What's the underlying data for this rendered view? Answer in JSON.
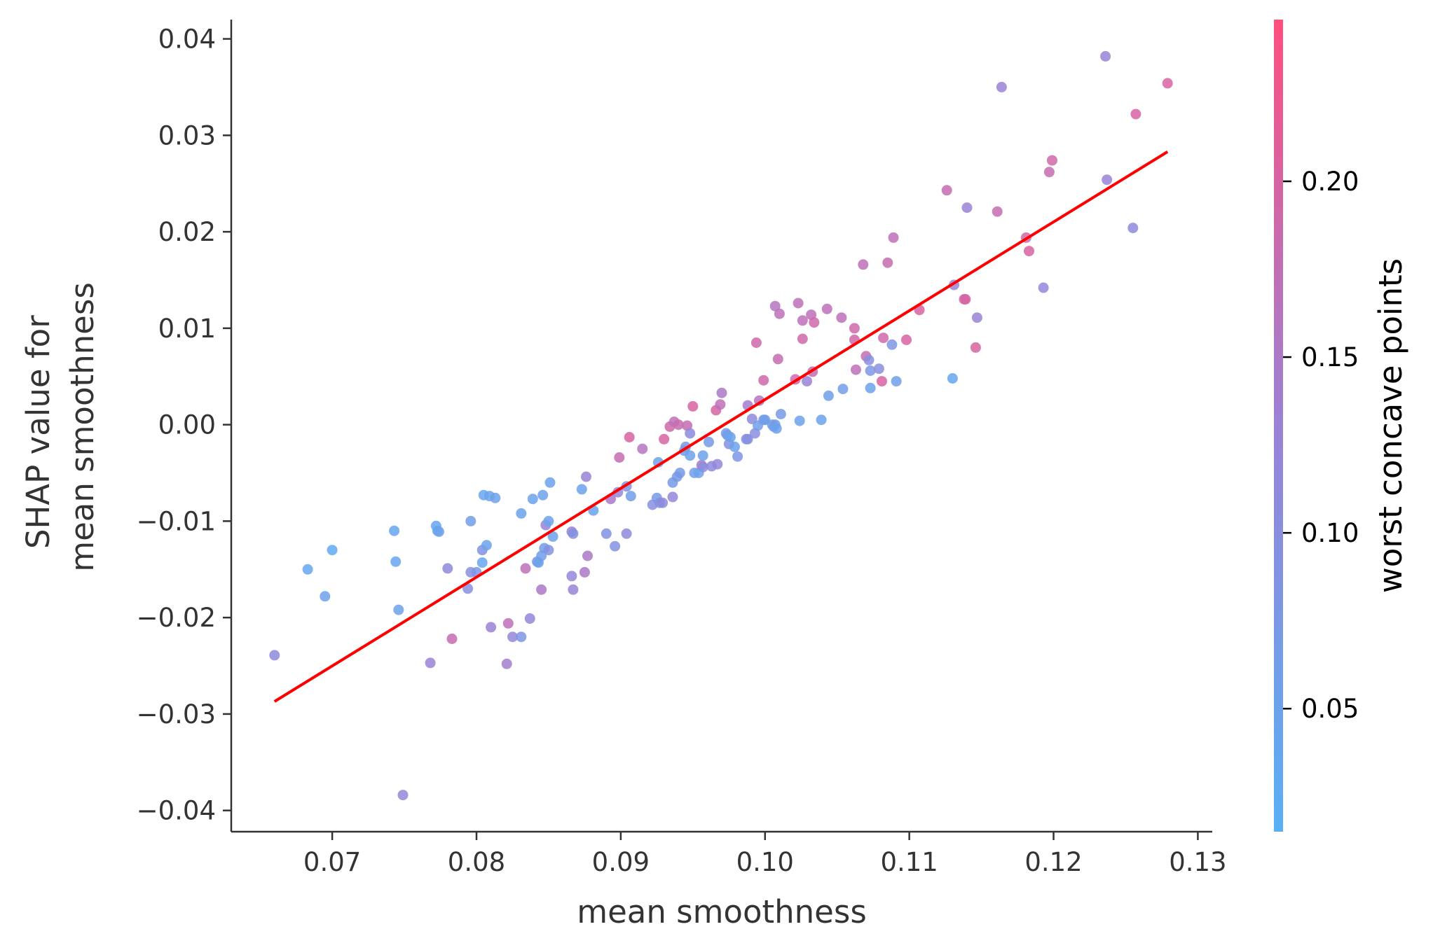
{
  "chart_data": {
    "type": "scatter",
    "xlabel": "mean smoothness",
    "ylabel_lines": [
      "SHAP value for",
      "mean smoothness"
    ],
    "xlim": [
      0.063,
      0.131
    ],
    "ylim": [
      -0.0422,
      0.042
    ],
    "xticks": [
      0.07,
      0.08,
      0.09,
      0.1,
      0.11,
      0.12,
      0.13
    ],
    "xtick_labels": [
      "0.07",
      "0.08",
      "0.09",
      "0.10",
      "0.11",
      "0.12",
      "0.13"
    ],
    "yticks": [
      -0.04,
      -0.03,
      -0.02,
      -0.01,
      0.0,
      0.01,
      0.02,
      0.03,
      0.04
    ],
    "ytick_labels": [
      "−0.04",
      "−0.03",
      "−0.02",
      "−0.01",
      "0.00",
      "0.01",
      "0.02",
      "0.03",
      "0.04"
    ],
    "colorbar": {
      "label": "worst concave points",
      "range": [
        0.015,
        0.246
      ],
      "ticks": [
        0.05,
        0.1,
        0.15,
        0.2
      ],
      "tick_labels": [
        "0.05",
        "0.10",
        "0.15",
        "0.20"
      ],
      "color_low": "#58b0f5",
      "color_mid": "#9a82d6",
      "color_high": "#ff4f7e"
    },
    "trend_line": {
      "color": "#ff0000",
      "x": [
        0.066,
        0.1279
      ],
      "y": [
        -0.0287,
        0.0283
      ]
    },
    "points": [
      [
        0.066,
        -0.0239,
        0.11
      ],
      [
        0.0683,
        -0.015,
        0.04
      ],
      [
        0.0695,
        -0.0178,
        0.05
      ],
      [
        0.07,
        -0.013,
        0.03
      ],
      [
        0.0743,
        -0.011,
        0.04
      ],
      [
        0.0744,
        -0.0142,
        0.04
      ],
      [
        0.0746,
        -0.0192,
        0.05
      ],
      [
        0.0749,
        -0.0384,
        0.12
      ],
      [
        0.0768,
        -0.0247,
        0.13
      ],
      [
        0.0772,
        -0.0105,
        0.04
      ],
      [
        0.0773,
        -0.011,
        0.04
      ],
      [
        0.0774,
        -0.0111,
        0.05
      ],
      [
        0.078,
        -0.0149,
        0.11
      ],
      [
        0.0783,
        -0.0222,
        0.18
      ],
      [
        0.0794,
        -0.017,
        0.1
      ],
      [
        0.0796,
        -0.0153,
        0.1
      ],
      [
        0.0796,
        -0.01,
        0.06
      ],
      [
        0.08,
        -0.0153,
        0.08
      ],
      [
        0.0804,
        -0.013,
        0.09
      ],
      [
        0.0804,
        -0.0143,
        0.04
      ],
      [
        0.0805,
        -0.0073,
        0.04
      ],
      [
        0.0807,
        -0.0125,
        0.05
      ],
      [
        0.0809,
        -0.0074,
        0.05
      ],
      [
        0.081,
        -0.021,
        0.13
      ],
      [
        0.0813,
        -0.0076,
        0.05
      ],
      [
        0.0821,
        -0.0248,
        0.14
      ],
      [
        0.0822,
        -0.0206,
        0.17
      ],
      [
        0.0825,
        -0.022,
        0.12
      ],
      [
        0.0831,
        -0.022,
        0.08
      ],
      [
        0.0831,
        -0.0092,
        0.05
      ],
      [
        0.0834,
        -0.0149,
        0.17
      ],
      [
        0.0837,
        -0.0201,
        0.12
      ],
      [
        0.0839,
        -0.0077,
        0.05
      ],
      [
        0.0842,
        -0.0142,
        0.08
      ],
      [
        0.0843,
        -0.0143,
        0.05
      ],
      [
        0.0845,
        -0.0136,
        0.06
      ],
      [
        0.0845,
        -0.0171,
        0.15
      ],
      [
        0.0846,
        -0.0073,
        0.05
      ],
      [
        0.0847,
        -0.0128,
        0.06
      ],
      [
        0.0848,
        -0.0104,
        0.13
      ],
      [
        0.085,
        -0.013,
        0.09
      ],
      [
        0.085,
        -0.01,
        0.05
      ],
      [
        0.0851,
        -0.006,
        0.05
      ],
      [
        0.0853,
        -0.0116,
        0.05
      ],
      [
        0.0866,
        -0.0157,
        0.12
      ],
      [
        0.0866,
        -0.0111,
        0.13
      ],
      [
        0.0867,
        -0.0171,
        0.13
      ],
      [
        0.0867,
        -0.0113,
        0.09
      ],
      [
        0.0873,
        -0.0067,
        0.05
      ],
      [
        0.0875,
        -0.0153,
        0.15
      ],
      [
        0.0876,
        -0.0054,
        0.13
      ],
      [
        0.0877,
        -0.0136,
        0.15
      ],
      [
        0.0881,
        -0.0089,
        0.05
      ],
      [
        0.089,
        -0.0113,
        0.09
      ],
      [
        0.0893,
        -0.0077,
        0.15
      ],
      [
        0.0896,
        -0.0126,
        0.09
      ],
      [
        0.0898,
        -0.007,
        0.12
      ],
      [
        0.0899,
        -0.0034,
        0.18
      ],
      [
        0.0904,
        -0.0064,
        0.09
      ],
      [
        0.0904,
        -0.0113,
        0.11
      ],
      [
        0.0906,
        -0.0013,
        0.2
      ],
      [
        0.0907,
        -0.0074,
        0.06
      ],
      [
        0.0915,
        -0.0025,
        0.16
      ],
      [
        0.0922,
        -0.0083,
        0.1
      ],
      [
        0.0925,
        -0.0076,
        0.07
      ],
      [
        0.0926,
        -0.0039,
        0.05
      ],
      [
        0.0927,
        -0.0081,
        0.09
      ],
      [
        0.0929,
        -0.0081,
        0.11
      ],
      [
        0.093,
        -0.0015,
        0.2
      ],
      [
        0.0934,
        -0.0002,
        0.19
      ],
      [
        0.0936,
        -0.0075,
        0.12
      ],
      [
        0.0936,
        -0.006,
        0.07
      ],
      [
        0.0937,
        0.0003,
        0.17
      ],
      [
        0.0939,
        -0.0054,
        0.07
      ],
      [
        0.094,
        0.0,
        0.18
      ],
      [
        0.0941,
        -0.005,
        0.07
      ],
      [
        0.0944,
        -0.0027,
        0.06
      ],
      [
        0.0945,
        -0.0023,
        0.08
      ],
      [
        0.0946,
        -0.0001,
        0.18
      ],
      [
        0.0948,
        -0.0032,
        0.05
      ],
      [
        0.0948,
        -0.0009,
        0.11
      ],
      [
        0.095,
        0.0019,
        0.2
      ],
      [
        0.0951,
        -0.005,
        0.06
      ],
      [
        0.0954,
        -0.005,
        0.05
      ],
      [
        0.0956,
        -0.0042,
        0.15
      ],
      [
        0.0957,
        -0.0044,
        0.1
      ],
      [
        0.0957,
        -0.0032,
        0.05
      ],
      [
        0.0961,
        -0.0018,
        0.07
      ],
      [
        0.0963,
        -0.0043,
        0.11
      ],
      [
        0.0966,
        0.0015,
        0.2
      ],
      [
        0.0967,
        -0.0041,
        0.12
      ],
      [
        0.0969,
        0.0021,
        0.17
      ],
      [
        0.097,
        0.0033,
        0.15
      ],
      [
        0.0973,
        -0.0009,
        0.07
      ],
      [
        0.0974,
        -0.0011,
        0.06
      ],
      [
        0.0975,
        -0.002,
        0.09
      ],
      [
        0.0976,
        -0.0013,
        0.05
      ],
      [
        0.0979,
        -0.0023,
        0.05
      ],
      [
        0.0981,
        -0.0033,
        0.08
      ],
      [
        0.0987,
        -0.0015,
        0.08
      ],
      [
        0.0988,
        0.002,
        0.14
      ],
      [
        0.0988,
        -0.0015,
        0.1
      ],
      [
        0.0991,
        0.0006,
        0.11
      ],
      [
        0.0993,
        -0.0009,
        0.1
      ],
      [
        0.0994,
        0.0085,
        0.19
      ],
      [
        0.0995,
        -0.0001,
        0.06
      ],
      [
        0.0996,
        0.0025,
        0.16
      ],
      [
        0.0999,
        0.0046,
        0.19
      ],
      [
        0.0999,
        0.0005,
        0.07
      ],
      [
        0.1,
        0.0005,
        0.06
      ],
      [
        0.1005,
        0.0,
        0.06
      ],
      [
        0.1006,
        -0.0002,
        0.05
      ],
      [
        0.1007,
        0.0123,
        0.16
      ],
      [
        0.1007,
        0.0,
        0.07
      ],
      [
        0.1008,
        -0.0004,
        0.05
      ],
      [
        0.1009,
        0.0068,
        0.18
      ],
      [
        0.101,
        0.0115,
        0.17
      ],
      [
        0.1011,
        0.0011,
        0.07
      ],
      [
        0.1021,
        0.0047,
        0.19
      ],
      [
        0.1023,
        0.0126,
        0.17
      ],
      [
        0.1024,
        0.0004,
        0.05
      ],
      [
        0.1026,
        0.0089,
        0.19
      ],
      [
        0.1026,
        0.0108,
        0.17
      ],
      [
        0.1029,
        0.0045,
        0.13
      ],
      [
        0.1032,
        0.0114,
        0.17
      ],
      [
        0.1033,
        0.0055,
        0.18
      ],
      [
        0.1034,
        0.0106,
        0.19
      ],
      [
        0.1039,
        0.0005,
        0.05
      ],
      [
        0.1043,
        0.012,
        0.17
      ],
      [
        0.1044,
        0.003,
        0.06
      ],
      [
        0.1053,
        0.0111,
        0.17
      ],
      [
        0.1054,
        0.0037,
        0.06
      ],
      [
        0.1062,
        0.01,
        0.19
      ],
      [
        0.1062,
        0.0088,
        0.19
      ],
      [
        0.1063,
        0.0057,
        0.17
      ],
      [
        0.1068,
        0.0166,
        0.17
      ],
      [
        0.107,
        0.0071,
        0.18
      ],
      [
        0.1072,
        0.0067,
        0.1
      ],
      [
        0.1073,
        0.0038,
        0.05
      ],
      [
        0.1073,
        0.0056,
        0.08
      ],
      [
        0.1079,
        0.0058,
        0.1
      ],
      [
        0.1081,
        0.0045,
        0.2
      ],
      [
        0.1082,
        0.009,
        0.19
      ],
      [
        0.1085,
        0.0168,
        0.18
      ],
      [
        0.1088,
        0.0083,
        0.08
      ],
      [
        0.1089,
        0.0194,
        0.17
      ],
      [
        0.1091,
        0.0045,
        0.06
      ],
      [
        0.1098,
        0.0088,
        0.2
      ],
      [
        0.1107,
        0.0119,
        0.2
      ],
      [
        0.1126,
        0.0243,
        0.18
      ],
      [
        0.113,
        0.0048,
        0.04
      ],
      [
        0.1131,
        0.0145,
        0.13
      ],
      [
        0.1138,
        0.013,
        0.19
      ],
      [
        0.1139,
        0.013,
        0.2
      ],
      [
        0.114,
        0.0225,
        0.13
      ],
      [
        0.1146,
        0.008,
        0.2
      ],
      [
        0.1147,
        0.0111,
        0.13
      ],
      [
        0.1161,
        0.0221,
        0.18
      ],
      [
        0.1164,
        0.035,
        0.13
      ],
      [
        0.1181,
        0.0194,
        0.19
      ],
      [
        0.1183,
        0.018,
        0.2
      ],
      [
        0.1193,
        0.0142,
        0.12
      ],
      [
        0.1197,
        0.0262,
        0.18
      ],
      [
        0.1199,
        0.0274,
        0.19
      ],
      [
        0.1236,
        0.0382,
        0.13
      ],
      [
        0.1237,
        0.0254,
        0.13
      ],
      [
        0.1255,
        0.0204,
        0.11
      ],
      [
        0.1257,
        0.0322,
        0.2
      ],
      [
        0.1279,
        0.0354,
        0.2
      ]
    ]
  }
}
